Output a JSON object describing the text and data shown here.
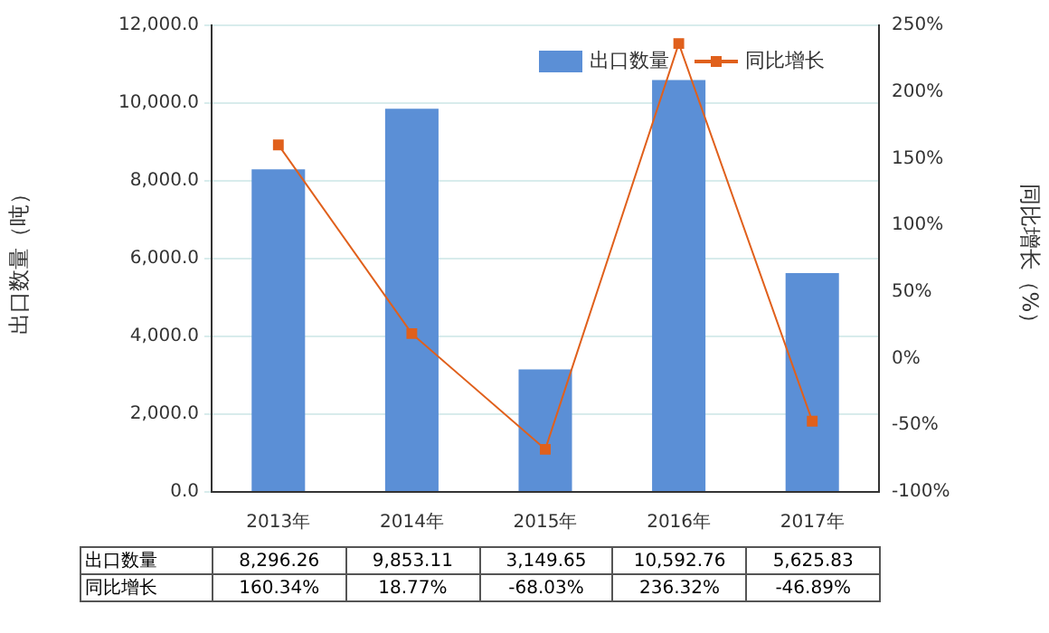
{
  "chart_data": {
    "type": "bar",
    "categories": [
      "2013年",
      "2014年",
      "2015年",
      "2016年",
      "2017年"
    ],
    "ylabel": "出口数量（吨）",
    "y2label": "同比增长（%）",
    "ylim": [
      0,
      12000
    ],
    "yticks": [
      {
        "value": 0,
        "label": "0.0"
      },
      {
        "value": 2000,
        "label": "2,000.0"
      },
      {
        "value": 4000,
        "label": "4,000.0"
      },
      {
        "value": 6000,
        "label": "6,000.0"
      },
      {
        "value": 8000,
        "label": "8,000.0"
      },
      {
        "value": 10000,
        "label": "10,000.0"
      },
      {
        "value": 12000,
        "label": "12,000.0"
      }
    ],
    "y2lim": [
      -100,
      250
    ],
    "y2ticks": [
      {
        "value": -100,
        "label": "-100%"
      },
      {
        "value": -50,
        "label": "-50%"
      },
      {
        "value": 0,
        "label": "0%"
      },
      {
        "value": 50,
        "label": "50%"
      },
      {
        "value": 100,
        "label": "100%"
      },
      {
        "value": 150,
        "label": "150%"
      },
      {
        "value": 200,
        "label": "200%"
      },
      {
        "value": 250,
        "label": "250%"
      }
    ],
    "grid": "y",
    "legend": "top right",
    "series": [
      {
        "name": "出口数量",
        "color": "#5b8fd6",
        "values": [
          8296.26,
          9853.11,
          3149.65,
          10592.76,
          5625.83
        ],
        "value_labels": [
          "8,296.26",
          "9,853.11",
          "3,149.65",
          "10,592.76",
          "5,625.83"
        ]
      },
      {
        "name": "同比增长",
        "type": "line",
        "axis": "y2",
        "color": "#e0601c",
        "marker": "square",
        "values": [
          160.34,
          18.77,
          -68.03,
          236.32,
          -46.89
        ],
        "value_labels": [
          "160.34%",
          "18.77%",
          "-68.03%",
          "236.32%",
          "-46.89%"
        ]
      }
    ]
  }
}
